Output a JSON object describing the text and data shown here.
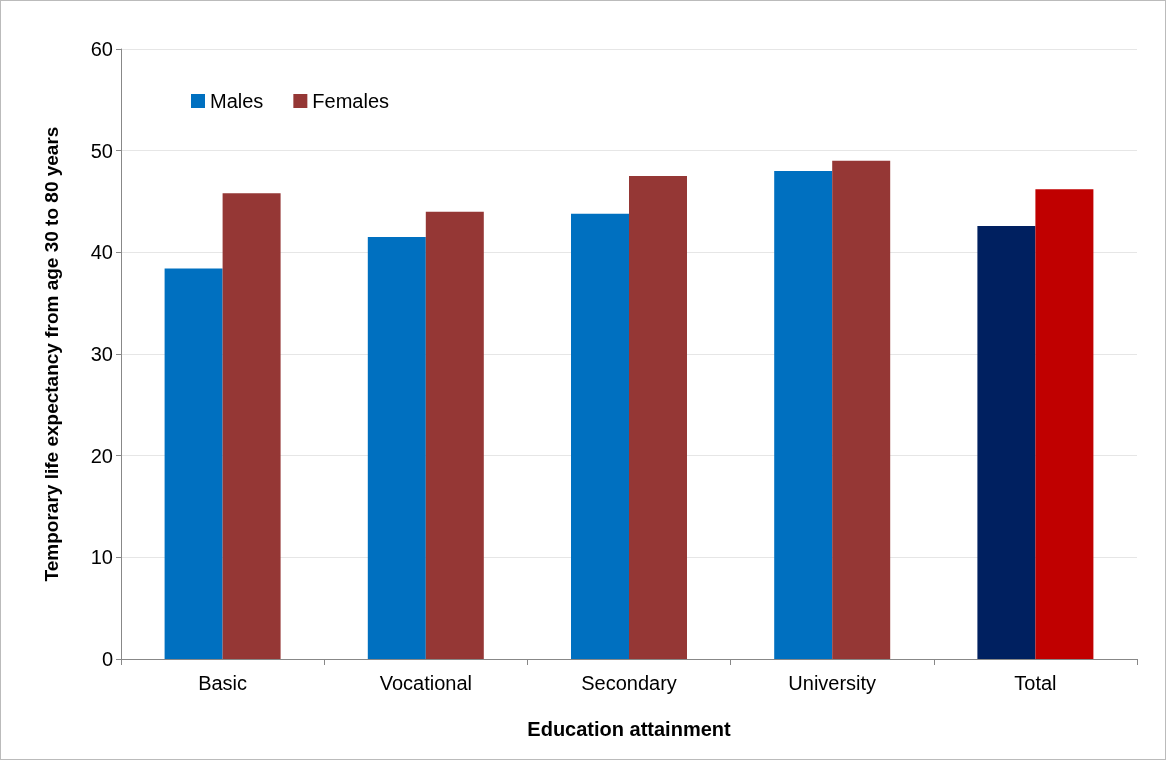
{
  "chart_data": {
    "type": "bar",
    "xlabel": "Education attainment",
    "ylabel": "Temporary life expectancy from age 30 to 80 years",
    "categories": [
      "Basic",
      "Vocational",
      "Secondary",
      "University",
      "Total"
    ],
    "series": [
      {
        "name": "Males",
        "color": "#0070c0",
        "colors": [
          "#0070c0",
          "#0070c0",
          "#0070c0",
          "#0070c0",
          "#002060"
        ],
        "values": [
          38.4,
          41.5,
          43.8,
          48.0,
          42.6
        ]
      },
      {
        "name": "Females",
        "color": "#953735",
        "colors": [
          "#953735",
          "#953735",
          "#953735",
          "#953735",
          "#c00000"
        ],
        "values": [
          45.8,
          44.0,
          47.5,
          49.0,
          46.2
        ]
      }
    ],
    "ylim": [
      0,
      60
    ],
    "yticks": [
      0,
      10,
      20,
      30,
      40,
      50,
      60
    ],
    "grid": "y",
    "legend": "top left"
  }
}
